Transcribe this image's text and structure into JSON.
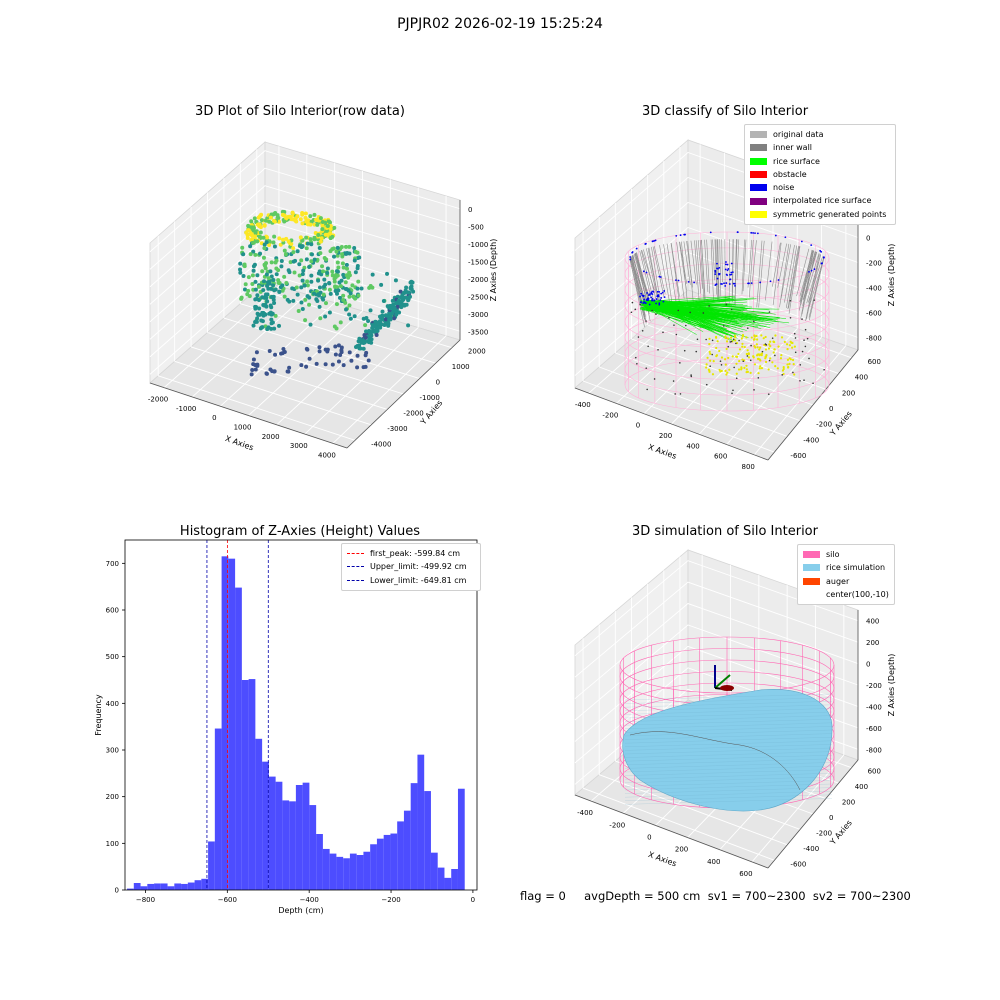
{
  "suptitle": "PJPJR02 2026-02-19 15:25:24",
  "status_line": "flag = 0     avgDepth = 500 cm  sv1 = 700~2300  sv2 = 700~2300",
  "chart_data": [
    {
      "type": "scatter",
      "subtype": "3d",
      "title": "3D Plot of Silo Interior(row data)",
      "xlabel": "X Axies",
      "ylabel": "Y Axies",
      "zlabel": "Z Axies (Depth)",
      "xticks": [
        "-2000",
        "-1000",
        "0",
        "1000",
        "2000",
        "3000",
        "4000"
      ],
      "yticks": [
        "-4000",
        "-3000",
        "-2000",
        "-1000",
        "0",
        "1000",
        "2000"
      ],
      "zticks": [
        "-3500",
        "-3000",
        "-2500",
        "-2000",
        "-1500",
        "-1000",
        "-500",
        "0"
      ],
      "colormap": "viridis",
      "grid": true
    },
    {
      "type": "scatter",
      "subtype": "3d",
      "title": "3D classify of Silo Interior",
      "xlabel": "X Axies",
      "ylabel": "Y Axies",
      "zlabel": "Z Axies (Depth)",
      "xticks": [
        "-400",
        "-200",
        "0",
        "200",
        "400",
        "600",
        "800"
      ],
      "yticks": [
        "-600",
        "-400",
        "-200",
        "0",
        "200",
        "400",
        "600"
      ],
      "zticks": [
        "-800",
        "-600",
        "-400",
        "-200",
        "0",
        "200"
      ],
      "legend_position": "top-right",
      "legend": [
        {
          "label": "original data",
          "color": "#b3b3b3"
        },
        {
          "label": "inner wall",
          "color": "#808080"
        },
        {
          "label": "rice surface",
          "color": "#00ff00"
        },
        {
          "label": "obstacle",
          "color": "#ff0000"
        },
        {
          "label": "noise",
          "color": "#0000ee"
        },
        {
          "label": "interpolated rice surface",
          "color": "#800080"
        },
        {
          "label": "symmetric generated points",
          "color": "#ffff00"
        }
      ],
      "grid": true
    },
    {
      "type": "bar",
      "subtype": "histogram",
      "title": "Histogram of Z-Axies (Height) Values",
      "xlabel": "Depth (cm)",
      "ylabel": "Frequency",
      "xlim": [
        -850,
        10
      ],
      "ylim": [
        0,
        750
      ],
      "xticks": [
        -800,
        -600,
        -400,
        -200,
        0
      ],
      "yticks": [
        0,
        100,
        200,
        300,
        400,
        500,
        600,
        700
      ],
      "bar_color": "#4d4dff",
      "bin_width": 16.5,
      "bin_start": -845,
      "counts": [
        3,
        15,
        8,
        13,
        14,
        14,
        8,
        14,
        13,
        16,
        21,
        24,
        104,
        346,
        715,
        710,
        648,
        450,
        452,
        324,
        275,
        243,
        232,
        192,
        190,
        225,
        230,
        182,
        120,
        88,
        78,
        71,
        68,
        78,
        75,
        82,
        98,
        110,
        118,
        121,
        147,
        170,
        229,
        290,
        212,
        80,
        48,
        26,
        45,
        217
      ],
      "reference_lines": [
        {
          "label": "first_peak: -599.84 cm",
          "value": -599.84,
          "color": "#ff0000"
        },
        {
          "label": "Upper_limit: -499.92 cm",
          "value": -499.92,
          "color": "#0000aa"
        },
        {
          "label": "Lower_limit: -649.81 cm",
          "value": -649.81,
          "color": "#0000aa"
        }
      ],
      "legend_position": "top-right"
    },
    {
      "type": "area",
      "subtype": "3d-surface",
      "title": "3D simulation of Silo Interior",
      "xlabel": "X Axies",
      "ylabel": "Y Axies",
      "zlabel": "Z Axies (Depth)",
      "xticks": [
        "-400",
        "-200",
        "0",
        "200",
        "400",
        "600"
      ],
      "yticks": [
        "-600",
        "-400",
        "-200",
        "0",
        "200",
        "400",
        "600"
      ],
      "zticks": [
        "-800",
        "-600",
        "-400",
        "-200",
        "0",
        "200",
        "400"
      ],
      "legend_position": "top-right",
      "legend": [
        {
          "label": "silo",
          "color": "#ff69b4"
        },
        {
          "label": "rice simulation",
          "color": "#87ceeb"
        },
        {
          "label": "auger",
          "color": "#ff4500"
        },
        {
          "label": "center(100,-10)",
          "color": ""
        }
      ],
      "grid": true
    }
  ]
}
